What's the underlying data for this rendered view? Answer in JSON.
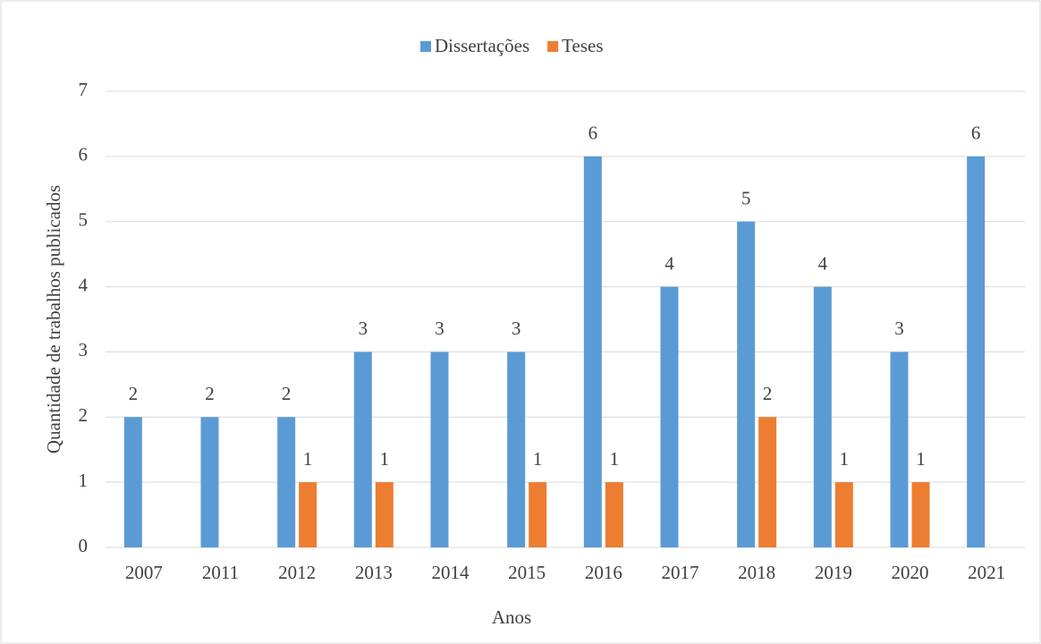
{
  "chart_data": {
    "type": "bar",
    "categories": [
      "2007",
      "2011",
      "2012",
      "2013",
      "2014",
      "2015",
      "2016",
      "2017",
      "2018",
      "2019",
      "2020",
      "2021"
    ],
    "series": [
      {
        "name": "Dissertações",
        "color": "#5b9bd5",
        "values": [
          2,
          2,
          2,
          3,
          3,
          3,
          6,
          4,
          5,
          4,
          3,
          6
        ]
      },
      {
        "name": "Teses",
        "color": "#ed7d31",
        "values": [
          null,
          null,
          1,
          1,
          null,
          1,
          1,
          null,
          2,
          1,
          1,
          null
        ]
      }
    ],
    "xlabel": "Anos",
    "ylabel": "Quantidade de trabalhos publicados",
    "ylim": [
      0,
      7
    ],
    "yticks": [
      0,
      1,
      2,
      3,
      4,
      5,
      6,
      7
    ],
    "grid": true,
    "legend": "top"
  }
}
